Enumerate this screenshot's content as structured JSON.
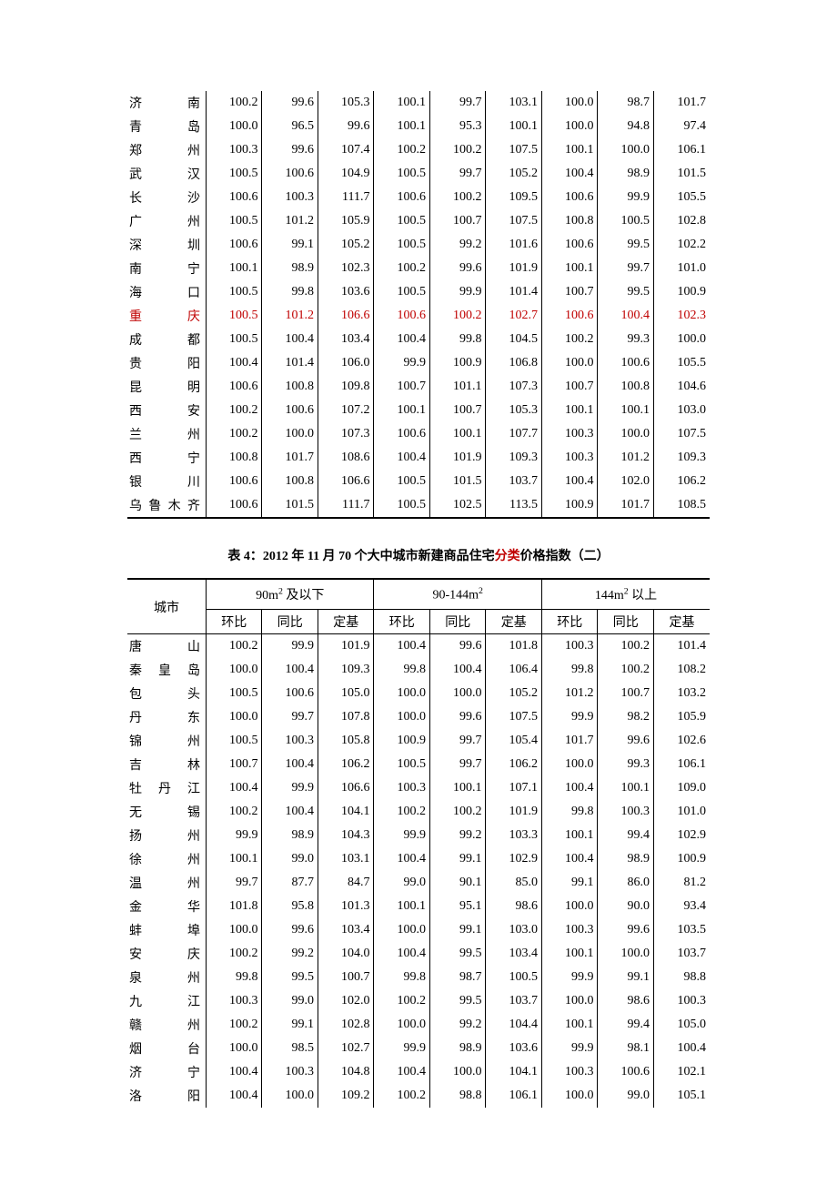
{
  "table1": {
    "rows": [
      {
        "city": "济　　南",
        "v": [
          "100.2",
          "99.6",
          "105.3",
          "100.1",
          "99.7",
          "103.1",
          "100.0",
          "98.7",
          "101.7"
        ],
        "hl": false
      },
      {
        "city": "青　　岛",
        "v": [
          "100.0",
          "96.5",
          "99.6",
          "100.1",
          "95.3",
          "100.1",
          "100.0",
          "94.8",
          "97.4"
        ],
        "hl": false
      },
      {
        "city": "郑　　州",
        "v": [
          "100.3",
          "99.6",
          "107.4",
          "100.2",
          "100.2",
          "107.5",
          "100.1",
          "100.0",
          "106.1"
        ],
        "hl": false
      },
      {
        "city": "武　　汉",
        "v": [
          "100.5",
          "100.6",
          "104.9",
          "100.5",
          "99.7",
          "105.2",
          "100.4",
          "98.9",
          "101.5"
        ],
        "hl": false
      },
      {
        "city": "长　　沙",
        "v": [
          "100.6",
          "100.3",
          "111.7",
          "100.6",
          "100.2",
          "109.5",
          "100.6",
          "99.9",
          "105.5"
        ],
        "hl": false
      },
      {
        "city": "广　　州",
        "v": [
          "100.5",
          "101.2",
          "105.9",
          "100.5",
          "100.7",
          "107.5",
          "100.8",
          "100.5",
          "102.8"
        ],
        "hl": false
      },
      {
        "city": "深　　圳",
        "v": [
          "100.6",
          "99.1",
          "105.2",
          "100.5",
          "99.2",
          "101.6",
          "100.6",
          "99.5",
          "102.2"
        ],
        "hl": false
      },
      {
        "city": "南　　宁",
        "v": [
          "100.1",
          "98.9",
          "102.3",
          "100.2",
          "99.6",
          "101.9",
          "100.1",
          "99.7",
          "101.0"
        ],
        "hl": false
      },
      {
        "city": "海　　口",
        "v": [
          "100.5",
          "99.8",
          "103.6",
          "100.5",
          "99.9",
          "101.4",
          "100.7",
          "99.5",
          "100.9"
        ],
        "hl": false
      },
      {
        "city": "重　　庆",
        "v": [
          "100.5",
          "101.2",
          "106.6",
          "100.6",
          "100.2",
          "102.7",
          "100.6",
          "100.4",
          "102.3"
        ],
        "hl": true
      },
      {
        "city": "成　　都",
        "v": [
          "100.5",
          "100.4",
          "103.4",
          "100.4",
          "99.8",
          "104.5",
          "100.2",
          "99.3",
          "100.0"
        ],
        "hl": false
      },
      {
        "city": "贵　　阳",
        "v": [
          "100.4",
          "101.4",
          "106.0",
          "99.9",
          "100.9",
          "106.8",
          "100.0",
          "100.6",
          "105.5"
        ],
        "hl": false
      },
      {
        "city": "昆　　明",
        "v": [
          "100.6",
          "100.8",
          "109.8",
          "100.7",
          "101.1",
          "107.3",
          "100.7",
          "100.8",
          "104.6"
        ],
        "hl": false
      },
      {
        "city": "西　　安",
        "v": [
          "100.2",
          "100.6",
          "107.2",
          "100.1",
          "100.7",
          "105.3",
          "100.1",
          "100.1",
          "103.0"
        ],
        "hl": false
      },
      {
        "city": "兰　　州",
        "v": [
          "100.2",
          "100.0",
          "107.3",
          "100.6",
          "100.1",
          "107.7",
          "100.3",
          "100.0",
          "107.5"
        ],
        "hl": false
      },
      {
        "city": "西　　宁",
        "v": [
          "100.8",
          "101.7",
          "108.6",
          "100.4",
          "101.9",
          "109.3",
          "100.3",
          "101.2",
          "109.3"
        ],
        "hl": false
      },
      {
        "city": "银　　川",
        "v": [
          "100.6",
          "100.8",
          "106.6",
          "100.5",
          "101.5",
          "103.7",
          "100.4",
          "102.0",
          "106.2"
        ],
        "hl": false
      },
      {
        "city": "乌鲁木齐",
        "v": [
          "100.6",
          "101.5",
          "111.7",
          "100.5",
          "102.5",
          "113.5",
          "100.9",
          "101.7",
          "108.5"
        ],
        "hl": false
      }
    ]
  },
  "table2": {
    "title_prefix": "表 4：2012 年 11 月 70 个大中城市新建商品住宅",
    "title_red": "分类",
    "title_suffix": "价格指数（二）",
    "city_header": "城市",
    "group_headers": [
      "90m² 及以下",
      "90-144m²",
      "144m² 以上"
    ],
    "sub_headers": [
      "环比",
      "同比",
      "定基"
    ],
    "rows": [
      {
        "city": "唐　　山",
        "v": [
          "100.2",
          "99.9",
          "101.9",
          "100.4",
          "99.6",
          "101.8",
          "100.3",
          "100.2",
          "101.4"
        ]
      },
      {
        "city": "秦 皇 岛",
        "v": [
          "100.0",
          "100.4",
          "109.3",
          "99.8",
          "100.4",
          "106.4",
          "99.8",
          "100.2",
          "108.2"
        ]
      },
      {
        "city": "包　　头",
        "v": [
          "100.5",
          "100.6",
          "105.0",
          "100.0",
          "100.0",
          "105.2",
          "101.2",
          "100.7",
          "103.2"
        ]
      },
      {
        "city": "丹　　东",
        "v": [
          "100.0",
          "99.7",
          "107.8",
          "100.0",
          "99.6",
          "107.5",
          "99.9",
          "98.2",
          "105.9"
        ]
      },
      {
        "city": "锦　　州",
        "v": [
          "100.5",
          "100.3",
          "105.8",
          "100.9",
          "99.7",
          "105.4",
          "101.7",
          "99.6",
          "102.6"
        ]
      },
      {
        "city": "吉　　林",
        "v": [
          "100.7",
          "100.4",
          "106.2",
          "100.5",
          "99.7",
          "106.2",
          "100.0",
          "99.3",
          "106.1"
        ]
      },
      {
        "city": "牡 丹 江",
        "v": [
          "100.4",
          "99.9",
          "106.6",
          "100.3",
          "100.1",
          "107.1",
          "100.4",
          "100.1",
          "109.0"
        ]
      },
      {
        "city": "无　　锡",
        "v": [
          "100.2",
          "100.4",
          "104.1",
          "100.2",
          "100.2",
          "101.9",
          "99.8",
          "100.3",
          "101.0"
        ]
      },
      {
        "city": "扬　　州",
        "v": [
          "99.9",
          "98.9",
          "104.3",
          "99.9",
          "99.2",
          "103.3",
          "100.1",
          "99.4",
          "102.9"
        ]
      },
      {
        "city": "徐　　州",
        "v": [
          "100.1",
          "99.0",
          "103.1",
          "100.4",
          "99.1",
          "102.9",
          "100.4",
          "98.9",
          "100.9"
        ]
      },
      {
        "city": "温　　州",
        "v": [
          "99.7",
          "87.7",
          "84.7",
          "99.0",
          "90.1",
          "85.0",
          "99.1",
          "86.0",
          "81.2"
        ]
      },
      {
        "city": "金　　华",
        "v": [
          "101.8",
          "95.8",
          "101.3",
          "100.1",
          "95.1",
          "98.6",
          "100.0",
          "90.0",
          "93.4"
        ]
      },
      {
        "city": "蚌　　埠",
        "v": [
          "100.0",
          "99.6",
          "103.4",
          "100.0",
          "99.1",
          "103.0",
          "100.3",
          "99.6",
          "103.5"
        ]
      },
      {
        "city": "安　　庆",
        "v": [
          "100.2",
          "99.2",
          "104.0",
          "100.4",
          "99.5",
          "103.4",
          "100.1",
          "100.0",
          "103.7"
        ]
      },
      {
        "city": "泉　　州",
        "v": [
          "99.8",
          "99.5",
          "100.7",
          "99.8",
          "98.7",
          "100.5",
          "99.9",
          "99.1",
          "98.8"
        ]
      },
      {
        "city": "九　　江",
        "v": [
          "100.3",
          "99.0",
          "102.0",
          "100.2",
          "99.5",
          "103.7",
          "100.0",
          "98.6",
          "100.3"
        ]
      },
      {
        "city": "赣　　州",
        "v": [
          "100.2",
          "99.1",
          "102.8",
          "100.0",
          "99.2",
          "104.4",
          "100.1",
          "99.4",
          "105.0"
        ]
      },
      {
        "city": "烟　　台",
        "v": [
          "100.0",
          "98.5",
          "102.7",
          "99.9",
          "98.9",
          "103.6",
          "99.9",
          "98.1",
          "100.4"
        ]
      },
      {
        "city": "济　　宁",
        "v": [
          "100.4",
          "100.3",
          "104.8",
          "100.4",
          "100.0",
          "104.1",
          "100.3",
          "100.6",
          "102.1"
        ]
      },
      {
        "city": "洛　　阳",
        "v": [
          "100.4",
          "100.0",
          "109.2",
          "100.2",
          "98.8",
          "106.1",
          "100.0",
          "99.0",
          "105.1"
        ]
      }
    ]
  },
  "col_widths": {
    "city": "13.5%",
    "value": "9.6%"
  }
}
